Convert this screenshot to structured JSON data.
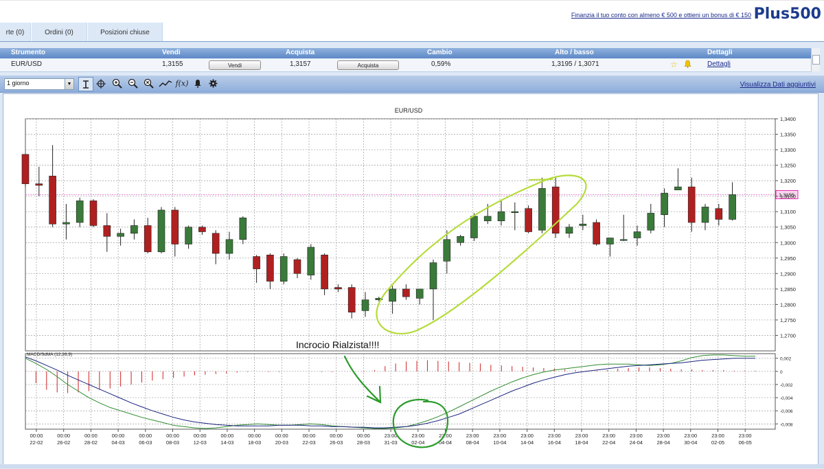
{
  "header": {
    "promo_link": "Finanzia il tuo conto con almeno € 500 e ottieni un bonus di € 150",
    "logo": "Plus500"
  },
  "tabs": [
    {
      "label": "rte (0)"
    },
    {
      "label": "Ordini (0)"
    },
    {
      "label": "Posizioni chiuse"
    }
  ],
  "instrument_grid": {
    "headers": {
      "strumento": "Strumento",
      "vendi": "Vendi",
      "acquista": "Acquista",
      "cambio": "Cambio",
      "alto_basso": "Alto / basso",
      "dettagli": "Dettagli"
    },
    "row": {
      "instrument": "EUR/USD",
      "sell_price": "1,3155",
      "sell_button": "Vendi",
      "buy_price": "1,3157",
      "buy_button": "Acquista",
      "change": "0,59%",
      "high_low": "1,3195 / 1,3071",
      "details_link": "Dettagli"
    }
  },
  "toolbar": {
    "period_value": "1 giorno",
    "additional_data_link": "Visualizza Dati aggiuntivi",
    "tools": [
      "cursor-icon",
      "crosshair-icon",
      "zoom-in-icon",
      "zoom-out-icon",
      "zoom-reset-icon",
      "trendline-icon",
      "function-icon",
      "alert-bell-icon",
      "settings-gear-icon"
    ],
    "function_label": "f(x)"
  },
  "chart_data": {
    "type": "candlestick",
    "title": "EUR/USD",
    "price_axis": {
      "min": 1.265,
      "max": 1.34,
      "ticks": [
        "1,3400",
        "1,3350",
        "1,3300",
        "1,3250",
        "1,3200",
        "1,3150",
        "1,3100",
        "1,3050",
        "1,3000",
        "1,2950",
        "1,2900",
        "1,2850",
        "1,2800",
        "1,2750",
        "1,2700"
      ]
    },
    "current_price": {
      "value": 1.3155,
      "label": "1,3155",
      "color": "#e600a0"
    },
    "colors": {
      "up": "#3a7a3a",
      "down": "#b02020",
      "annotation": "#b5dc3a",
      "macd_annotation": "#2a9a2a"
    },
    "candles": [
      {
        "o": 1.3285,
        "h": 1.3285,
        "l": 1.318,
        "c": 1.319
      },
      {
        "o": 1.319,
        "h": 1.3245,
        "l": 1.315,
        "c": 1.3185
      },
      {
        "o": 1.3215,
        "h": 1.3315,
        "l": 1.305,
        "c": 1.306
      },
      {
        "o": 1.306,
        "h": 1.3125,
        "l": 1.301,
        "c": 1.3065
      },
      {
        "o": 1.3065,
        "h": 1.3145,
        "l": 1.305,
        "c": 1.3135
      },
      {
        "o": 1.3135,
        "h": 1.314,
        "l": 1.305,
        "c": 1.3055
      },
      {
        "o": 1.3055,
        "h": 1.3095,
        "l": 1.297,
        "c": 1.302
      },
      {
        "o": 1.302,
        "h": 1.3045,
        "l": 1.299,
        "c": 1.303
      },
      {
        "o": 1.303,
        "h": 1.3075,
        "l": 1.301,
        "c": 1.3055
      },
      {
        "o": 1.3055,
        "h": 1.308,
        "l": 1.2965,
        "c": 1.297
      },
      {
        "o": 1.297,
        "h": 1.3115,
        "l": 1.2965,
        "c": 1.3105
      },
      {
        "o": 1.3105,
        "h": 1.3115,
        "l": 1.2955,
        "c": 1.2995
      },
      {
        "o": 1.2995,
        "h": 1.3055,
        "l": 1.298,
        "c": 1.305
      },
      {
        "o": 1.305,
        "h": 1.3055,
        "l": 1.3025,
        "c": 1.3035
      },
      {
        "o": 1.303,
        "h": 1.304,
        "l": 1.293,
        "c": 1.2965
      },
      {
        "o": 1.2965,
        "h": 1.3035,
        "l": 1.2945,
        "c": 1.301
      },
      {
        "o": 1.301,
        "h": 1.3085,
        "l": 1.2995,
        "c": 1.308
      },
      {
        "o": 1.2955,
        "h": 1.296,
        "l": 1.287,
        "c": 1.2915
      },
      {
        "o": 1.296,
        "h": 1.2965,
        "l": 1.285,
        "c": 1.2875
      },
      {
        "o": 1.2875,
        "h": 1.2965,
        "l": 1.2865,
        "c": 1.2955
      },
      {
        "o": 1.2945,
        "h": 1.295,
        "l": 1.2885,
        "c": 1.29
      },
      {
        "o": 1.2895,
        "h": 1.2995,
        "l": 1.288,
        "c": 1.2985
      },
      {
        "o": 1.296,
        "h": 1.2965,
        "l": 1.283,
        "c": 1.285
      },
      {
        "o": 1.2855,
        "h": 1.2865,
        "l": 1.284,
        "c": 1.285
      },
      {
        "o": 1.2855,
        "h": 1.2865,
        "l": 1.2755,
        "c": 1.2775
      },
      {
        "o": 1.278,
        "h": 1.284,
        "l": 1.276,
        "c": 1.2815
      },
      {
        "o": 1.2815,
        "h": 1.2825,
        "l": 1.281,
        "c": 1.282
      },
      {
        "o": 1.281,
        "h": 1.286,
        "l": 1.277,
        "c": 1.285
      },
      {
        "o": 1.285,
        "h": 1.2865,
        "l": 1.2815,
        "c": 1.2825
      },
      {
        "o": 1.282,
        "h": 1.285,
        "l": 1.28,
        "c": 1.285
      },
      {
        "o": 1.285,
        "h": 1.2945,
        "l": 1.275,
        "c": 1.2935
      },
      {
        "o": 1.294,
        "h": 1.304,
        "l": 1.29,
        "c": 1.301
      },
      {
        "o": 1.3,
        "h": 1.3025,
        "l": 1.299,
        "c": 1.302
      },
      {
        "o": 1.3015,
        "h": 1.3095,
        "l": 1.3005,
        "c": 1.3085
      },
      {
        "o": 1.307,
        "h": 1.3125,
        "l": 1.306,
        "c": 1.3085
      },
      {
        "o": 1.307,
        "h": 1.3135,
        "l": 1.3055,
        "c": 1.31
      },
      {
        "o": 1.31,
        "h": 1.313,
        "l": 1.304,
        "c": 1.31
      },
      {
        "o": 1.311,
        "h": 1.312,
        "l": 1.303,
        "c": 1.3035
      },
      {
        "o": 1.304,
        "h": 1.321,
        "l": 1.303,
        "c": 1.3175
      },
      {
        "o": 1.318,
        "h": 1.321,
        "l": 1.3015,
        "c": 1.303
      },
      {
        "o": 1.303,
        "h": 1.306,
        "l": 1.3015,
        "c": 1.305
      },
      {
        "o": 1.3055,
        "h": 1.309,
        "l": 1.304,
        "c": 1.306
      },
      {
        "o": 1.3065,
        "h": 1.3075,
        "l": 1.299,
        "c": 1.2995
      },
      {
        "o": 1.2995,
        "h": 1.3015,
        "l": 1.2955,
        "c": 1.3015
      },
      {
        "o": 1.301,
        "h": 1.309,
        "l": 1.3005,
        "c": 1.301
      },
      {
        "o": 1.3015,
        "h": 1.3055,
        "l": 1.299,
        "c": 1.3035
      },
      {
        "o": 1.304,
        "h": 1.3125,
        "l": 1.303,
        "c": 1.3095
      },
      {
        "o": 1.309,
        "h": 1.3175,
        "l": 1.305,
        "c": 1.316
      },
      {
        "o": 1.317,
        "h": 1.324,
        "l": 1.317,
        "c": 1.318
      },
      {
        "o": 1.318,
        "h": 1.321,
        "l": 1.3035,
        "c": 1.3065
      },
      {
        "o": 1.3065,
        "h": 1.3125,
        "l": 1.304,
        "c": 1.3115
      },
      {
        "o": 1.311,
        "h": 1.3125,
        "l": 1.3055,
        "c": 1.3075
      },
      {
        "o": 1.3075,
        "h": 1.3195,
        "l": 1.3071,
        "c": 1.3155
      }
    ],
    "x_labels": [
      {
        "time": "00:00",
        "date": "22-02"
      },
      {
        "time": "00:00",
        "date": "26-02"
      },
      {
        "time": "00:00",
        "date": "28-02"
      },
      {
        "time": "00:00",
        "date": "04-03"
      },
      {
        "time": "00:00",
        "date": "06-03"
      },
      {
        "time": "00:00",
        "date": "08-03"
      },
      {
        "time": "00:00",
        "date": "12-03"
      },
      {
        "time": "00:00",
        "date": "14-03"
      },
      {
        "time": "00:00",
        "date": "18-03"
      },
      {
        "time": "00:00",
        "date": "20-03"
      },
      {
        "time": "00:00",
        "date": "22-03"
      },
      {
        "time": "00:00",
        "date": "26-03"
      },
      {
        "time": "00:00",
        "date": "28-03"
      },
      {
        "time": "23:00",
        "date": "31-03"
      },
      {
        "time": "23:00",
        "date": "02-04"
      },
      {
        "time": "23:00",
        "date": "04-04"
      },
      {
        "time": "23:00",
        "date": "08-04"
      },
      {
        "time": "23:00",
        "date": "10-04"
      },
      {
        "time": "23:00",
        "date": "14-04"
      },
      {
        "time": "23:00",
        "date": "16-04"
      },
      {
        "time": "23:00",
        "date": "18-04"
      },
      {
        "time": "23:00",
        "date": "22-04"
      },
      {
        "time": "23:00",
        "date": "24-04"
      },
      {
        "time": "23:00",
        "date": "28-04"
      },
      {
        "time": "23:00",
        "date": "30-04"
      },
      {
        "time": "23:00",
        "date": "02-05"
      },
      {
        "time": "23:00",
        "date": "06-05"
      }
    ],
    "annotation_text": "Incrocio Rialzista!!!!",
    "macd": {
      "label": "MACD/SdMA (12,26,9)",
      "axis": {
        "min": -0.0088,
        "max": 0.0027,
        "ticks": [
          "0,002",
          "0",
          "-0,002",
          "-0,004",
          "-0,006",
          "-0,008"
        ]
      },
      "macd_line": [
        0.0022,
        0.0016,
        0.0009,
        0.0002,
        -0.0006,
        -0.0013,
        -0.002,
        -0.0027,
        -0.0034,
        -0.0041,
        -0.0048,
        -0.0054,
        -0.006,
        -0.0065,
        -0.007,
        -0.0074,
        -0.0077,
        -0.0079,
        -0.0081,
        -0.0082,
        -0.0083,
        -0.0083,
        -0.0083,
        -0.0083,
        -0.0082,
        -0.0082,
        -0.0082,
        -0.0083,
        -0.0083,
        -0.0084,
        -0.0084,
        -0.0085,
        -0.0085,
        -0.0086,
        -0.0086,
        -0.0085,
        -0.0084,
        -0.0082,
        -0.0079,
        -0.0075,
        -0.007,
        -0.0065,
        -0.0058,
        -0.0051,
        -0.0044,
        -0.0037,
        -0.003,
        -0.0024,
        -0.0018,
        -0.0013,
        -0.0009,
        -0.0005,
        -0.0002,
        0.0,
        0.0002,
        0.0004,
        0.0006,
        0.0008,
        0.0009,
        0.001,
        0.0011,
        0.0012,
        0.0013,
        0.0015,
        0.0017,
        0.0018,
        0.0019,
        0.002,
        0.002,
        0.002
      ],
      "signal_line": [
        0.002,
        0.0012,
        0.0003,
        -0.0008,
        -0.002,
        -0.003,
        -0.004,
        -0.0048,
        -0.0055,
        -0.006,
        -0.0065,
        -0.007,
        -0.0074,
        -0.0078,
        -0.0082,
        -0.0084,
        -0.0086,
        -0.0087,
        -0.0086,
        -0.0084,
        -0.0082,
        -0.0081,
        -0.008,
        -0.0081,
        -0.0082,
        -0.0082,
        -0.0081,
        -0.008,
        -0.0081,
        -0.0083,
        -0.0084,
        -0.0085,
        -0.0086,
        -0.0087,
        -0.0087,
        -0.0086,
        -0.0084,
        -0.008,
        -0.0075,
        -0.0069,
        -0.0062,
        -0.0054,
        -0.0046,
        -0.0038,
        -0.003,
        -0.0023,
        -0.0016,
        -0.001,
        -0.0005,
        -0.0001,
        0.0002,
        0.0004,
        0.0006,
        0.0008,
        0.001,
        0.0011,
        0.0011,
        0.0011,
        0.001,
        0.0009,
        0.001,
        0.0012,
        0.0016,
        0.0021,
        0.0024,
        0.0025,
        0.0025,
        0.0024,
        0.0023,
        0.0023
      ],
      "histogram": [
        0.0002,
        -0.0018,
        -0.0028,
        -0.0032,
        -0.0033,
        -0.0032,
        -0.003,
        -0.0028,
        -0.0026,
        -0.0023,
        -0.002,
        -0.0017,
        -0.0014,
        -0.0012,
        -0.001,
        -0.0008,
        -0.0006,
        -0.0005,
        -0.0004,
        -0.0003,
        -0.0002,
        -0.0001,
        0.0,
        -0.0001,
        -0.0001,
        0.0,
        0.0,
        0.0,
        -0.0001,
        -0.0001,
        0.0,
        0.0,
        -0.0001,
        0.0002,
        0.0008,
        0.0012,
        0.0015,
        0.0016,
        0.0017,
        0.0016,
        0.0015,
        0.0014,
        0.0013,
        0.0012,
        0.001,
        0.0009,
        0.0008,
        0.0007,
        0.0006,
        0.0005,
        0.0004,
        0.0003,
        0.0002,
        0.0001,
        0.0001,
        0.0002,
        0.0004,
        0.0005,
        0.0006,
        0.0006,
        0.0005,
        0.0004,
        0.0003,
        0.0003,
        0.0002,
        0.0002,
        0.0002,
        0.0001,
        0.0001,
        0.0001
      ]
    }
  }
}
